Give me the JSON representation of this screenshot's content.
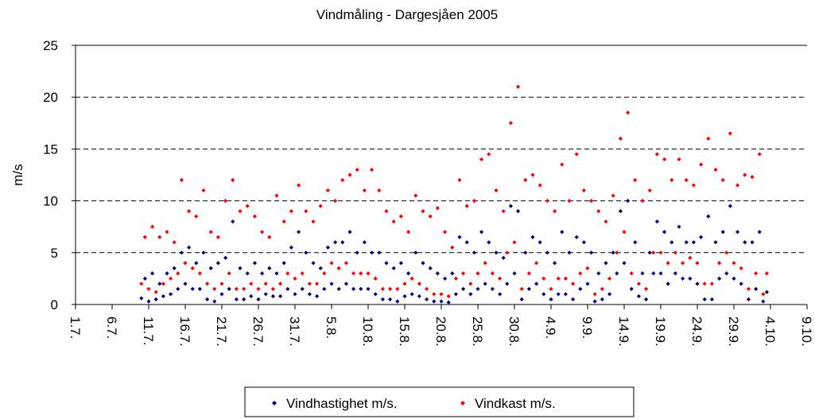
{
  "chart_data": {
    "type": "scatter",
    "title": "Vindmåling - Dargesjåen 2005",
    "y_label": "m/s",
    "xlim": [
      0,
      100
    ],
    "ylim": [
      0,
      25
    ],
    "yticks": [
      0,
      5,
      10,
      15,
      20,
      25
    ],
    "grid": true,
    "legend": "bottom",
    "xticks": [
      {
        "value": 0,
        "label": "1.7."
      },
      {
        "value": 5,
        "label": "6.7."
      },
      {
        "value": 10,
        "label": "11.7."
      },
      {
        "value": 15,
        "label": "16.7."
      },
      {
        "value": 20,
        "label": "21.7."
      },
      {
        "value": 25,
        "label": "26.7."
      },
      {
        "value": 30,
        "label": "31.7."
      },
      {
        "value": 35,
        "label": "5.8."
      },
      {
        "value": 40,
        "label": "10.8."
      },
      {
        "value": 45,
        "label": "15.8."
      },
      {
        "value": 50,
        "label": "20.8."
      },
      {
        "value": 55,
        "label": "25.8."
      },
      {
        "value": 60,
        "label": "30.8."
      },
      {
        "value": 65,
        "label": "4.9."
      },
      {
        "value": 70,
        "label": "9.9."
      },
      {
        "value": 75,
        "label": "14.9."
      },
      {
        "value": 80,
        "label": "19.9."
      },
      {
        "value": 85,
        "label": "24.9."
      },
      {
        "value": 90,
        "label": "29.9."
      },
      {
        "value": 95,
        "label": "4.10."
      },
      {
        "value": 100,
        "label": "9.10."
      }
    ],
    "x": [
      9,
      9.5,
      10,
      10.5,
      11,
      11.5,
      12,
      12.5,
      13,
      13.5,
      14,
      14.5,
      15,
      15.5,
      16,
      16.5,
      17,
      17.5,
      18,
      18.5,
      19,
      19.5,
      20,
      20.5,
      21,
      21.5,
      22,
      22.5,
      23,
      23.5,
      24,
      24.5,
      25,
      25.5,
      26,
      26.5,
      27,
      27.5,
      28,
      28.5,
      29,
      29.5,
      30,
      30.5,
      31,
      31.5,
      32,
      32.5,
      33,
      33.5,
      34,
      34.5,
      35,
      35.5,
      36,
      36.5,
      37,
      37.5,
      38,
      38.5,
      39,
      39.5,
      40,
      40.5,
      41,
      41.5,
      42,
      42.5,
      43,
      43.5,
      44,
      44.5,
      45,
      45.5,
      46,
      46.5,
      47,
      47.5,
      48,
      48.5,
      49,
      49.5,
      50,
      50.5,
      51,
      51.5,
      52,
      52.5,
      53,
      53.5,
      54,
      54.5,
      55,
      55.5,
      56,
      56.5,
      57,
      57.5,
      58,
      58.5,
      59,
      59.5,
      60,
      60.5,
      61,
      61.5,
      62,
      62.5,
      63,
      63.5,
      64,
      64.5,
      65,
      65.5,
      66,
      66.5,
      67,
      67.5,
      68,
      68.5,
      69,
      69.5,
      70,
      70.5,
      71,
      71.5,
      72,
      72.5,
      73,
      73.5,
      74,
      74.5,
      75,
      75.5,
      76,
      76.5,
      77,
      77.5,
      78,
      78.5,
      79,
      79.5,
      80,
      80.5,
      81,
      81.5,
      82,
      82.5,
      83,
      83.5,
      84,
      84.5,
      85,
      85.5,
      86,
      86.5,
      87,
      87.5,
      88,
      88.5,
      89,
      89.5,
      90,
      90.5,
      91,
      91.5,
      92,
      92.5,
      93,
      93.5,
      94,
      94.5
    ],
    "series": [
      {
        "name": "Vindhastighet m/s.",
        "color": "#000080",
        "values": [
          0.6,
          2.5,
          0.3,
          3,
          0.5,
          2,
          0.8,
          3,
          1,
          3.5,
          1.5,
          5,
          2,
          5.5,
          1.5,
          4,
          1.5,
          5,
          0.5,
          3.5,
          0.3,
          4,
          1,
          4.5,
          1.5,
          8,
          0.5,
          3.5,
          0.5,
          3,
          0.8,
          4,
          0.5,
          3,
          1,
          3.5,
          0.8,
          3,
          0.8,
          4,
          1.5,
          5.5,
          1,
          7,
          1.5,
          5,
          1,
          4,
          0.8,
          3.5,
          1.5,
          5.5,
          2,
          6,
          1.5,
          6,
          2,
          7,
          1.5,
          5,
          1.5,
          6,
          1.5,
          5,
          1,
          5,
          0.5,
          4,
          0.5,
          3.5,
          0.3,
          4,
          0.8,
          3,
          1,
          5,
          0.8,
          4,
          0.5,
          3.5,
          0.3,
          3,
          0.3,
          2.5,
          0.2,
          3,
          1,
          6.5,
          1.5,
          6,
          1,
          5,
          1.5,
          7,
          2,
          6,
          1.5,
          5,
          1,
          4.5,
          2,
          9.5,
          3,
          9,
          0.5,
          5,
          1.5,
          6.5,
          2,
          6,
          1,
          5,
          0.5,
          4,
          1,
          7,
          1,
          5,
          0.5,
          6.5,
          1.5,
          6,
          2,
          5,
          0.3,
          3,
          0.5,
          4,
          1,
          5,
          3,
          9,
          4,
          10,
          1.5,
          6,
          0.8,
          3,
          0.5,
          5,
          3,
          8,
          3,
          7,
          2,
          6,
          3,
          7.5,
          2.5,
          6,
          2.5,
          6,
          2,
          6.5,
          0.5,
          8.5,
          0.5,
          6,
          2.5,
          7,
          3,
          9.5,
          2.5,
          7,
          2,
          6,
          0.5,
          6,
          1.5,
          7,
          0.3,
          1.2
        ]
      },
      {
        "name": "Vindkast m/s.",
        "color": "#ff0000",
        "values": [
          2,
          6.5,
          1.5,
          7.5,
          1.2,
          6.5,
          2,
          7,
          2.5,
          6,
          3,
          12,
          4,
          9,
          3.5,
          8.5,
          3,
          11,
          2,
          7,
          1.5,
          6.5,
          2,
          10,
          3,
          12,
          1.5,
          9,
          1.5,
          9.5,
          2,
          8.5,
          1.5,
          7,
          2,
          6.5,
          1.5,
          10.5,
          2,
          8,
          3,
          9,
          2.5,
          11.5,
          3,
          9,
          2,
          8,
          2,
          9.5,
          3,
          11,
          4,
          10,
          3.5,
          12,
          4,
          12.5,
          3,
          13,
          3,
          11,
          3,
          13,
          2.5,
          11,
          1.5,
          9,
          1.5,
          8,
          1.5,
          8.5,
          2,
          7,
          2.5,
          10.5,
          2,
          9,
          1.5,
          8.5,
          1,
          9.3,
          1,
          7,
          0.8,
          5.5,
          2.5,
          12,
          3,
          9.5,
          2,
          10,
          3,
          14,
          4,
          14.5,
          3,
          11,
          2.5,
          9,
          5,
          17.5,
          6,
          21,
          1.5,
          12,
          3,
          12.5,
          4,
          11.5,
          2.5,
          10,
          1.5,
          9,
          2.5,
          13.5,
          2.5,
          10,
          2,
          14.5,
          3,
          11,
          3.5,
          10,
          1,
          9,
          1.5,
          8,
          2.5,
          10.5,
          5,
          16,
          7,
          18.5,
          3,
          12,
          2,
          10,
          1.5,
          11,
          5,
          14.5,
          5,
          14,
          4,
          12,
          5,
          14,
          4,
          12,
          4.5,
          11.5,
          4,
          13.5,
          2,
          16,
          2,
          13,
          4,
          12,
          5,
          16.5,
          4,
          11.5,
          3.5,
          12.5,
          1.5,
          12.3,
          3,
          14.5,
          1,
          3
        ]
      }
    ]
  }
}
